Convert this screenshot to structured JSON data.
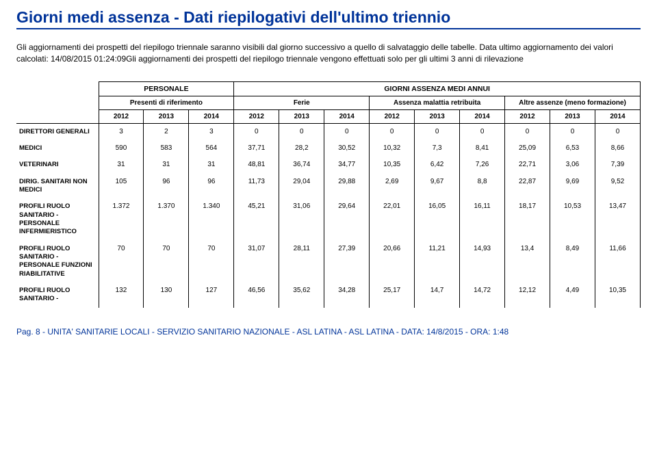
{
  "title": "Giorni medi assenza  - Dati riepilogativi dell'ultimo triennio",
  "intro": "Gli aggiornamenti dei prospetti del riepilogo triennale saranno visibili dal giorno successivo a quello di salvataggio delle tabelle. Data ultimo aggiornamento dei valori calcolati: 14/08/2015 01:24:09Gli aggiornamenti dei prospetti del riepilogo triennale vengono effettuati solo per gli ultimi 3 anni di rilevazione",
  "header_groups": {
    "g1": "PERSONALE",
    "g2": "GIORNI ASSENZA MEDI ANNUI",
    "sub1": "Presenti di riferimento",
    "sub2": "Ferie",
    "sub3": "Assenza malattia retribuita",
    "sub4": "Altre assenze (meno formazione)"
  },
  "years": [
    "2012",
    "2013",
    "2014",
    "2012",
    "2013",
    "2014",
    "2012",
    "2013",
    "2014",
    "2012",
    "2013",
    "2014"
  ],
  "rows": [
    {
      "label": "DIRETTORI GENERALI",
      "cells": [
        "3",
        "2",
        "3",
        "0",
        "0",
        "0",
        "0",
        "0",
        "0",
        "0",
        "0",
        "0"
      ]
    },
    {
      "label": "MEDICI",
      "cells": [
        "590",
        "583",
        "564",
        "37,71",
        "28,2",
        "30,52",
        "10,32",
        "7,3",
        "8,41",
        "25,09",
        "6,53",
        "8,66"
      ]
    },
    {
      "label": "VETERINARI",
      "cells": [
        "31",
        "31",
        "31",
        "48,81",
        "36,74",
        "34,77",
        "10,35",
        "6,42",
        "7,26",
        "22,71",
        "3,06",
        "7,39"
      ]
    },
    {
      "label": "DIRIG. SANITARI NON MEDICI",
      "cells": [
        "105",
        "96",
        "96",
        "11,73",
        "29,04",
        "29,88",
        "2,69",
        "9,67",
        "8,8",
        "22,87",
        "9,69",
        "9,52"
      ]
    },
    {
      "label": "PROFILI RUOLO SANITARIO - PERSONALE INFERMIERISTICO",
      "cells": [
        "1.372",
        "1.370",
        "1.340",
        "45,21",
        "31,06",
        "29,64",
        "22,01",
        "16,05",
        "16,11",
        "18,17",
        "10,53",
        "13,47"
      ]
    },
    {
      "label": "PROFILI RUOLO SANITARIO - PERSONALE FUNZIONI RIABILITATIVE",
      "cells": [
        "70",
        "70",
        "70",
        "31,07",
        "28,11",
        "27,39",
        "20,66",
        "11,21",
        "14,93",
        "13,4",
        "8,49",
        "11,66"
      ]
    },
    {
      "label": "PROFILI RUOLO SANITARIO -",
      "cells": [
        "132",
        "130",
        "127",
        "46,56",
        "35,62",
        "34,28",
        "25,17",
        "14,7",
        "14,72",
        "12,12",
        "4,49",
        "10,35"
      ]
    }
  ],
  "footer": "Pag. 8 - UNITA' SANITARIE LOCALI - SERVIZIO SANITARIO NAZIONALE - ASL LATINA - ASL LATINA - DATA: 14/8/2015 - ORA: 1:48",
  "colors": {
    "brand": "#003399",
    "text": "#000000",
    "border": "#000000",
    "background": "#ffffff"
  }
}
